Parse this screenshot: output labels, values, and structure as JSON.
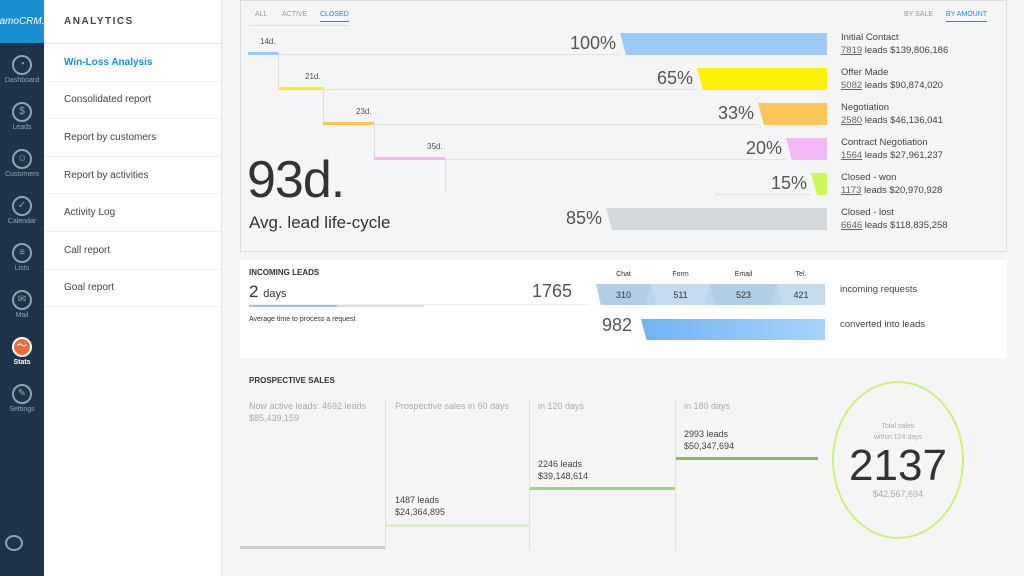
{
  "brand": "amoCRM.",
  "nav": [
    {
      "label": "Dashboard",
      "icon": "dashboard-icon"
    },
    {
      "label": "Leads",
      "icon": "dollar-icon"
    },
    {
      "label": "Customers",
      "icon": "customers-icon"
    },
    {
      "label": "Calendar",
      "icon": "check-icon"
    },
    {
      "label": "Lists",
      "icon": "list-icon"
    },
    {
      "label": "Mail",
      "icon": "mail-icon"
    },
    {
      "label": "Stats",
      "icon": "stats-icon",
      "active": true
    },
    {
      "label": "Settings",
      "icon": "wrench-icon"
    }
  ],
  "menu": {
    "title": "ANALYTICS",
    "items": [
      "Win-Loss Analysis",
      "Consolidated report",
      "Report by customers",
      "Report by activities",
      "Activity Log",
      "Call report",
      "Goal report"
    ]
  },
  "filters": {
    "tabs": [
      "ALL",
      "ACTIVE",
      "CLOSED"
    ],
    "active": "CLOSED",
    "modes": [
      "BY SALE",
      "BY AMOUNT"
    ],
    "active_mode": "BY AMOUNT"
  },
  "funnel": [
    {
      "pct": "100%",
      "name": "Initial Contact",
      "leads": "7819",
      "amount": "leads $139,806,186",
      "color": "#9ccaf9"
    },
    {
      "pct": "65%",
      "name": "Offer Made",
      "leads": "5082",
      "amount": "leads $90,874,020",
      "color": "#fff200"
    },
    {
      "pct": "33%",
      "name": "Negotiation",
      "leads": "2580",
      "amount": "leads $46,136,041",
      "color": "#ffc55a"
    },
    {
      "pct": "20%",
      "name": "Contract Negotiation",
      "leads": "1564",
      "amount": "leads $27,961,237",
      "color": "#f2b8f5"
    },
    {
      "pct": "15%",
      "name": "Closed - won",
      "leads": "1173",
      "amount": "leads $20,970,928",
      "color": "#ccf55a"
    },
    {
      "pct": "85%",
      "name": "Closed - lost",
      "leads": "6646",
      "amount": "leads $118,835,258",
      "color": "#d4d8db"
    }
  ],
  "durations": [
    "14d.",
    "21d.",
    "23d.",
    "35d."
  ],
  "avg": {
    "value": "93d.",
    "label": "Avg. lead life-cycle"
  },
  "incoming": {
    "title": "INCOMING LEADS",
    "days_num": "2",
    "days_unit": "days",
    "caption": "Average time to process a request",
    "total": "1765",
    "channels": [
      {
        "name": "Chat",
        "value": "310"
      },
      {
        "name": "Form",
        "value": "511"
      },
      {
        "name": "Email",
        "value": "523"
      },
      {
        "name": "Tel.",
        "value": "421"
      }
    ],
    "requests_label": "incoming requests",
    "converted": "982",
    "converted_label": "converted into leads"
  },
  "prospective": {
    "title": "PROSPECTIVE SALES",
    "cols": [
      {
        "title": "Now active leads: 4692 leads",
        "sub": "$85,439,159"
      },
      {
        "title": "Prospective sales in 60 days",
        "leads": "1487 leads",
        "amount": "$24,364,895"
      },
      {
        "title": "in 120 days",
        "leads": "2246 leads",
        "amount": "$39,148,614"
      },
      {
        "title": "in 180 days",
        "leads": "2993 leads",
        "amount": "$50,347,694"
      }
    ],
    "total_label1": "Total sales",
    "total_label2": "within 124 days",
    "total": "2137",
    "total_amount": "$42,567,694"
  }
}
